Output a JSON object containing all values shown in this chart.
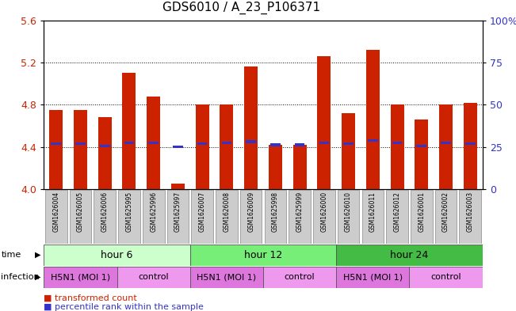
{
  "title": "GDS6010 / A_23_P106371",
  "samples": [
    "GSM1626004",
    "GSM1626005",
    "GSM1626006",
    "GSM1625995",
    "GSM1625996",
    "GSM1625997",
    "GSM1626007",
    "GSM1626008",
    "GSM1626009",
    "GSM1625998",
    "GSM1625999",
    "GSM1626000",
    "GSM1626010",
    "GSM1626011",
    "GSM1626012",
    "GSM1626001",
    "GSM1626002",
    "GSM1626003"
  ],
  "bar_values": [
    4.75,
    4.75,
    4.68,
    5.1,
    4.88,
    4.05,
    4.8,
    4.8,
    5.16,
    4.42,
    4.42,
    5.26,
    4.72,
    5.32,
    4.8,
    4.66,
    4.8,
    4.82
  ],
  "blue_marker_values": [
    4.43,
    4.43,
    4.41,
    4.44,
    4.44,
    4.4,
    4.43,
    4.44,
    4.45,
    4.42,
    4.42,
    4.44,
    4.43,
    4.46,
    4.44,
    4.41,
    4.44,
    4.43
  ],
  "ylim_left": [
    4.0,
    5.6
  ],
  "ylim_right": [
    0,
    100
  ],
  "yticks_left": [
    4.0,
    4.4,
    4.8,
    5.2,
    5.6
  ],
  "yticks_right": [
    0,
    25,
    50,
    75,
    100
  ],
  "ytick_labels_right": [
    "0",
    "25",
    "50",
    "75",
    "100%"
  ],
  "bar_color": "#cc2200",
  "blue_color": "#3333cc",
  "tick_label_color_left": "#cc2200",
  "tick_label_color_right": "#3333cc",
  "grid_lines": [
    4.4,
    4.8,
    5.2
  ],
  "time_groups": [
    {
      "label": "hour 6",
      "start": 0,
      "end": 6,
      "color": "#ccffcc"
    },
    {
      "label": "hour 12",
      "start": 6,
      "end": 12,
      "color": "#77ee77"
    },
    {
      "label": "hour 24",
      "start": 12,
      "end": 18,
      "color": "#44bb44"
    }
  ],
  "infect_groups": [
    {
      "label": "H5N1 (MOI 1)",
      "start": 0,
      "end": 3,
      "color": "#dd77dd"
    },
    {
      "label": "control",
      "start": 3,
      "end": 6,
      "color": "#ee99ee"
    },
    {
      "label": "H5N1 (MOI 1)",
      "start": 6,
      "end": 9,
      "color": "#dd77dd"
    },
    {
      "label": "control",
      "start": 9,
      "end": 12,
      "color": "#ee99ee"
    },
    {
      "label": "H5N1 (MOI 1)",
      "start": 12,
      "end": 15,
      "color": "#dd77dd"
    },
    {
      "label": "control",
      "start": 15,
      "end": 18,
      "color": "#ee99ee"
    }
  ],
  "sample_box_color": "#cccccc",
  "legend_red": "transformed count",
  "legend_blue": "percentile rank within the sample"
}
